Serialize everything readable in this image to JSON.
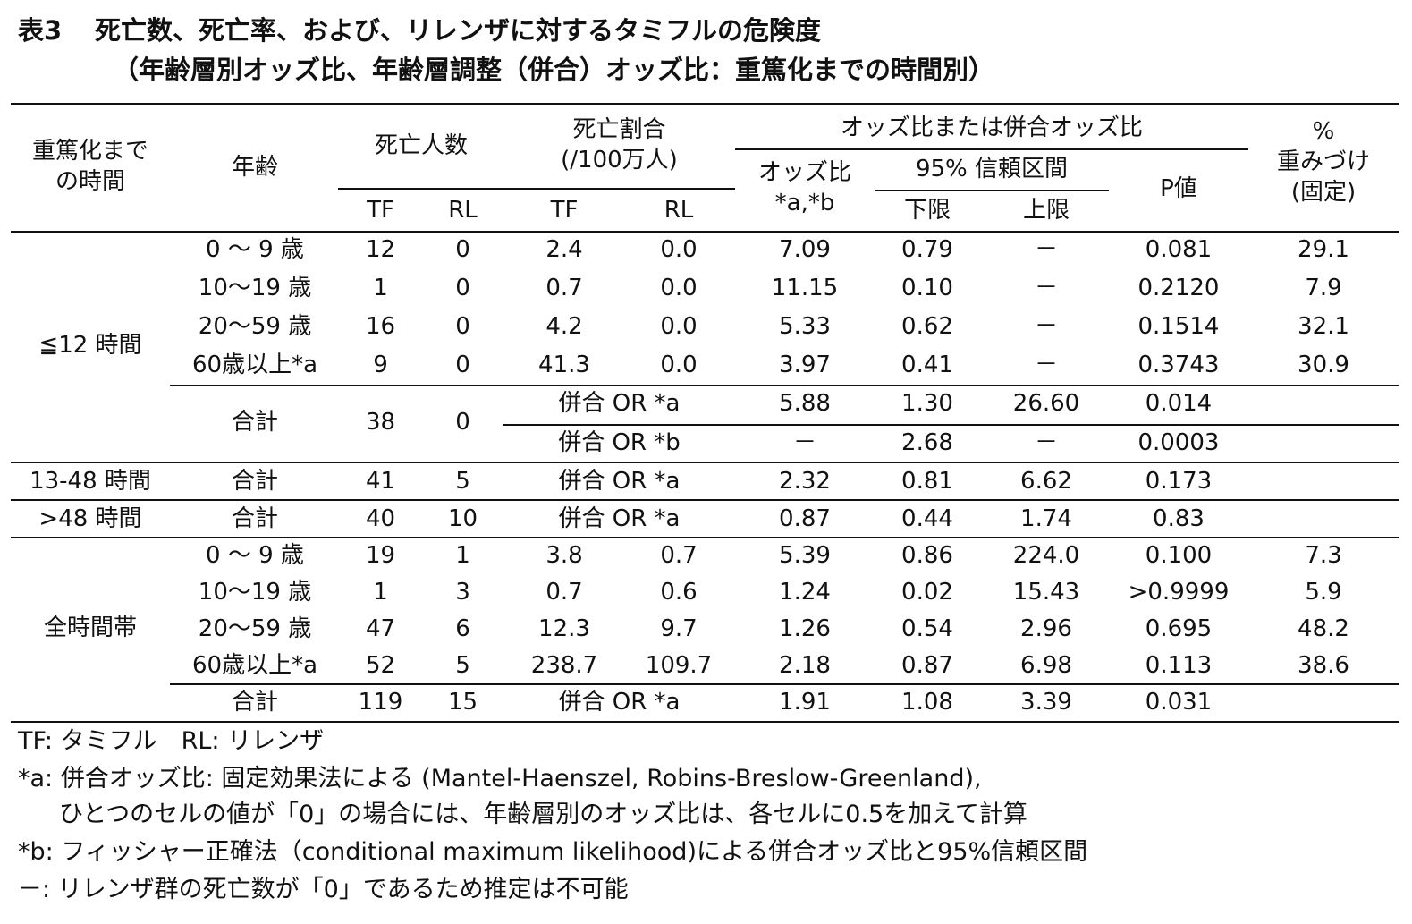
{
  "title": {
    "label": "表3",
    "line1": "死亡数、死亡率、および、リレンザに対するタミフルの危険度",
    "line2": "（年齢層別オッズ比、年齢層調整（併合）オッズ比：重篤化までの時間別）"
  },
  "headers": {
    "time_line1": "重篤化まで",
    "time_line2": "の時間",
    "age": "年齢",
    "deaths": "死亡人数",
    "rate_line1": "死亡割合",
    "rate_line2": "(/100万人)",
    "tf": "TF",
    "rl": "RL",
    "odds_group": "オッズ比または併合オッズ比",
    "odds_line1": "オッズ比",
    "odds_line2": "*a,*b",
    "ci": "95% 信頼区間",
    "lower": "下限",
    "upper": "上限",
    "p": "P値",
    "weight_line1": "%",
    "weight_line2": "重みづけ",
    "weight_line3": "(固定)"
  },
  "groups": [
    {
      "label": "≦12 時間"
    },
    {
      "label": "13-48 時間"
    },
    {
      "label": ">48 時間"
    },
    {
      "label": "全時間帯"
    }
  ],
  "rows": [
    {
      "age": "0 ～ 9 歳",
      "tf": "12",
      "rl": "0",
      "rtf": "2.4",
      "rrl": "0.0",
      "or": "7.09",
      "lo": "0.79",
      "hi": "－",
      "p": "0.081",
      "w": "29.1"
    },
    {
      "age": "10～19 歳",
      "tf": "1",
      "rl": "0",
      "rtf": "0.7",
      "rrl": "0.0",
      "or": "11.15",
      "lo": "0.10",
      "hi": "－",
      "p": "0.2120",
      "w": "7.9"
    },
    {
      "age": "20～59 歳",
      "tf": "16",
      "rl": "0",
      "rtf": "4.2",
      "rrl": "0.0",
      "or": "5.33",
      "lo": "0.62",
      "hi": "－",
      "p": "0.1514",
      "w": "32.1"
    },
    {
      "age": "60歳以上*a",
      "tf": "9",
      "rl": "0",
      "rtf": "41.3",
      "rrl": "0.0",
      "or": "3.97",
      "lo": "0.41",
      "hi": "－",
      "p": "0.3743",
      "w": "30.9"
    },
    {
      "age": "合計",
      "tf": "38",
      "rl": "0",
      "pooled_a": "併合 OR *a",
      "or": "5.88",
      "lo": "1.30",
      "hi": "26.60",
      "p": "0.014",
      "pooled_b": "併合 OR *b",
      "or_b": "－",
      "lo_b": "2.68",
      "hi_b": "－",
      "p_b": "0.0003"
    },
    {
      "age": "合計",
      "tf": "41",
      "rl": "5",
      "pooled": "併合 OR *a",
      "or": "2.32",
      "lo": "0.81",
      "hi": "6.62",
      "p": "0.173"
    },
    {
      "age": "合計",
      "tf": "40",
      "rl": "10",
      "pooled": "併合 OR *a",
      "or": "0.87",
      "lo": "0.44",
      "hi": "1.74",
      "p": "0.83"
    },
    {
      "age": "0 ～ 9 歳",
      "tf": "19",
      "rl": "1",
      "rtf": "3.8",
      "rrl": "0.7",
      "or": "5.39",
      "lo": "0.86",
      "hi": "224.0",
      "p": "0.100",
      "w": "7.3"
    },
    {
      "age": "10～19 歳",
      "tf": "1",
      "rl": "3",
      "rtf": "0.7",
      "rrl": "0.6",
      "or": "1.24",
      "lo": "0.02",
      "hi": "15.43",
      "p": ">0.9999",
      "w": "5.9"
    },
    {
      "age": "20～59 歳",
      "tf": "47",
      "rl": "6",
      "rtf": "12.3",
      "rrl": "9.7",
      "or": "1.26",
      "lo": "0.54",
      "hi": "2.96",
      "p": "0.695",
      "w": "48.2"
    },
    {
      "age": "60歳以上*a",
      "tf": "52",
      "rl": "5",
      "rtf": "238.7",
      "rrl": "109.7",
      "or": "2.18",
      "lo": "0.87",
      "hi": "6.98",
      "p": "0.113",
      "w": "38.6"
    },
    {
      "age": "合計",
      "tf": "119",
      "rl": "15",
      "pooled": "併合 OR *a",
      "or": "1.91",
      "lo": "1.08",
      "hi": "3.39",
      "p": "0.031"
    }
  ],
  "footnotes": {
    "abbrev": "TF: タミフル　RL: リレンザ",
    "a1": "*a: 併合オッズ比: 固定効果法による (Mantel-Haenszel, Robins-Breslow-Greenland),",
    "a2": "ひとつのセルの値が「0」の場合には、年齢層別のオッズ比は、各セルに0.5を加えて計算",
    "b": "*b: フィッシャー正確法（conditional maximum likelihood)による併合オッズ比と95%信頼区間",
    "dash": "－:  リレンザ群の死亡数が「0」であるため推定は不可能"
  }
}
